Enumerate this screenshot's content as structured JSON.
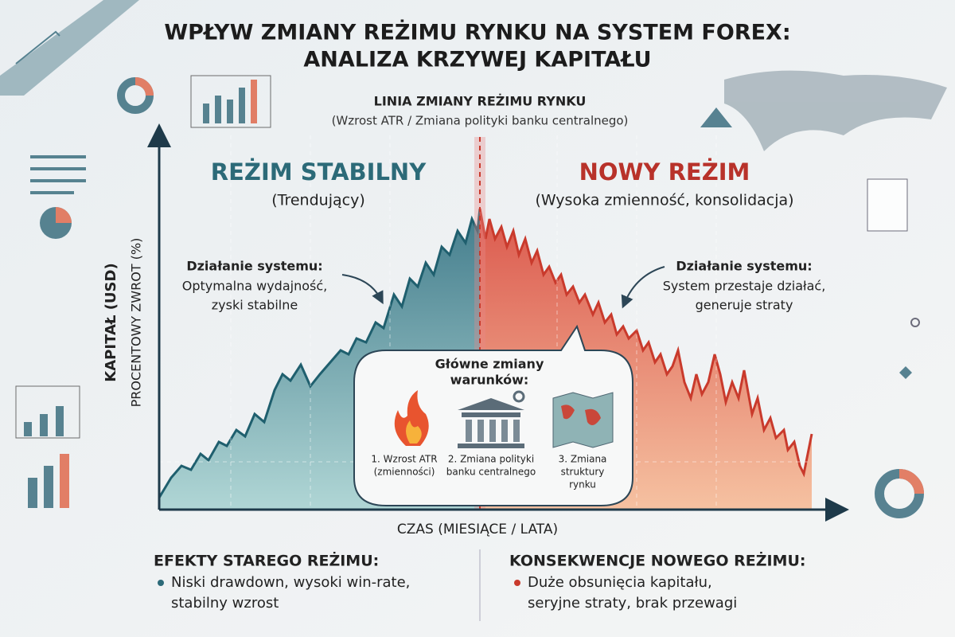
{
  "title": {
    "lines": [
      "WPŁYW ZMIANY REŻIMU RYNKU NA SYSTEM FOREX:",
      "ANALIZA KRZYWEJ KAPITAŁU"
    ]
  },
  "regime_line": {
    "title": "LINIA ZMIANY REŻIMU RYNKU",
    "subtitle": "(Wzrost ATR / Zmiana polityki banku centralnego)"
  },
  "old_regime": {
    "title": "REŻIM STABILNY",
    "subtitle": "(Trendujący)"
  },
  "new_regime": {
    "title": "NOWY REŻIM",
    "subtitle": "(Wysoka zmienność, konsolidacja)"
  },
  "axes": {
    "y_primary": "KAPITAŁ (USD)",
    "y_secondary": "PROCENTOWY ZWROT (%)",
    "x": "CZAS (MIESIĄCE / LATA)"
  },
  "left_note": {
    "heading": "Działanie systemu:",
    "lines": [
      "Optymalna wydajność,",
      "zyski stabilne"
    ]
  },
  "right_note": {
    "heading": "Działanie systemu:",
    "lines": [
      "System przestaje działać,",
      "generuje straty"
    ]
  },
  "callout": {
    "heading": [
      "Główne zmiany",
      "warunków:"
    ],
    "items": [
      [
        "1. Wzrost ATR",
        "(zmienności)"
      ],
      [
        "2. Zmiana polityki",
        "banku centralnego"
      ],
      [
        "3. Zmiana",
        "struktury",
        "rynku"
      ]
    ]
  },
  "footer": {
    "left": {
      "heading": "EFEKTY STAREGO REŻIMU:",
      "lines": [
        "Niski drawdown, wysoki win-rate,",
        "stabilny wzrost"
      ]
    },
    "right": {
      "heading": "KONSEKWENCJE NOWEGO REŻIMU:",
      "lines": [
        "Duże obsunięcia kapitału,",
        "seryjne straty, brak przewagi"
      ]
    }
  }
}
